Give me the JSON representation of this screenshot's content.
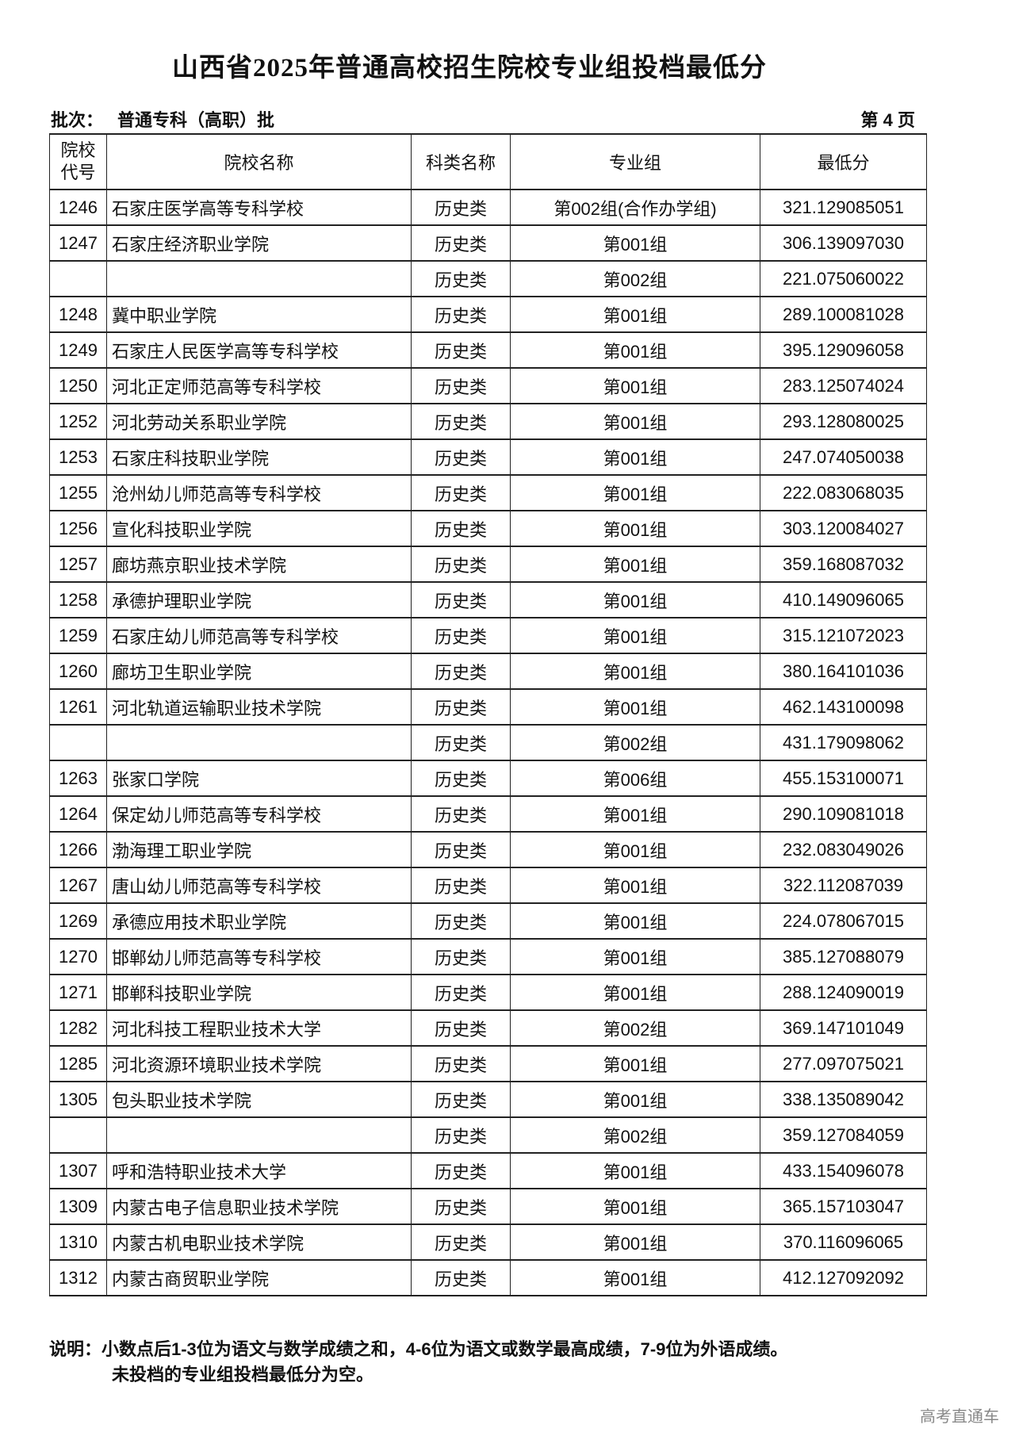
{
  "title": "山西省2025年普通高校招生院校专业组投档最低分",
  "batch_label": "批次：",
  "batch_value": "普通专科（高职）批",
  "page_label": "第 4 页",
  "table": {
    "headers": {
      "code_line1": "院校",
      "code_line2": "代号",
      "name": "院校名称",
      "category": "科类名称",
      "group": "专业组",
      "min_score": "最低分"
    },
    "rows": [
      [
        "1246",
        "石家庄医学高等专科学校",
        "历史类",
        "第002组(合作办学组)",
        "321.129085051"
      ],
      [
        "1247",
        "石家庄经济职业学院",
        "历史类",
        "第001组",
        "306.139097030"
      ],
      [
        "",
        "",
        "历史类",
        "第002组",
        "221.075060022"
      ],
      [
        "1248",
        "冀中职业学院",
        "历史类",
        "第001组",
        "289.100081028"
      ],
      [
        "1249",
        "石家庄人民医学高等专科学校",
        "历史类",
        "第001组",
        "395.129096058"
      ],
      [
        "1250",
        "河北正定师范高等专科学校",
        "历史类",
        "第001组",
        "283.125074024"
      ],
      [
        "1252",
        "河北劳动关系职业学院",
        "历史类",
        "第001组",
        "293.128080025"
      ],
      [
        "1253",
        "石家庄科技职业学院",
        "历史类",
        "第001组",
        "247.074050038"
      ],
      [
        "1255",
        "沧州幼儿师范高等专科学校",
        "历史类",
        "第001组",
        "222.083068035"
      ],
      [
        "1256",
        "宣化科技职业学院",
        "历史类",
        "第001组",
        "303.120084027"
      ],
      [
        "1257",
        "廊坊燕京职业技术学院",
        "历史类",
        "第001组",
        "359.168087032"
      ],
      [
        "1258",
        "承德护理职业学院",
        "历史类",
        "第001组",
        "410.149096065"
      ],
      [
        "1259",
        "石家庄幼儿师范高等专科学校",
        "历史类",
        "第001组",
        "315.121072023"
      ],
      [
        "1260",
        "廊坊卫生职业学院",
        "历史类",
        "第001组",
        "380.164101036"
      ],
      [
        "1261",
        "河北轨道运输职业技术学院",
        "历史类",
        "第001组",
        "462.143100098"
      ],
      [
        "",
        "",
        "历史类",
        "第002组",
        "431.179098062"
      ],
      [
        "1263",
        "张家口学院",
        "历史类",
        "第006组",
        "455.153100071"
      ],
      [
        "1264",
        "保定幼儿师范高等专科学校",
        "历史类",
        "第001组",
        "290.109081018"
      ],
      [
        "1266",
        "渤海理工职业学院",
        "历史类",
        "第001组",
        "232.083049026"
      ],
      [
        "1267",
        "唐山幼儿师范高等专科学校",
        "历史类",
        "第001组",
        "322.112087039"
      ],
      [
        "1269",
        "承德应用技术职业学院",
        "历史类",
        "第001组",
        "224.078067015"
      ],
      [
        "1270",
        "邯郸幼儿师范高等专科学校",
        "历史类",
        "第001组",
        "385.127088079"
      ],
      [
        "1271",
        "邯郸科技职业学院",
        "历史类",
        "第001组",
        "288.124090019"
      ],
      [
        "1282",
        "河北科技工程职业技术大学",
        "历史类",
        "第002组",
        "369.147101049"
      ],
      [
        "1285",
        "河北资源环境职业技术学院",
        "历史类",
        "第001组",
        "277.097075021"
      ],
      [
        "1305",
        "包头职业技术学院",
        "历史类",
        "第001组",
        "338.135089042"
      ],
      [
        "",
        "",
        "历史类",
        "第002组",
        "359.127084059"
      ],
      [
        "1307",
        "呼和浩特职业技术大学",
        "历史类",
        "第001组",
        "433.154096078"
      ],
      [
        "1309",
        "内蒙古电子信息职业技术学院",
        "历史类",
        "第001组",
        "365.157103047"
      ],
      [
        "1310",
        "内蒙古机电职业技术学院",
        "历史类",
        "第001组",
        "370.116096065"
      ],
      [
        "1312",
        "内蒙古商贸职业学院",
        "历史类",
        "第001组",
        "412.127092092"
      ]
    ]
  },
  "note": {
    "line1": "说明：小数点后1-3位为语文与数学成绩之和，4-6位为语文或数学最高成绩，7-9位为外语成绩。",
    "line2": "未投档的专业组投档最低分为空。"
  },
  "watermark": "高考直通车"
}
